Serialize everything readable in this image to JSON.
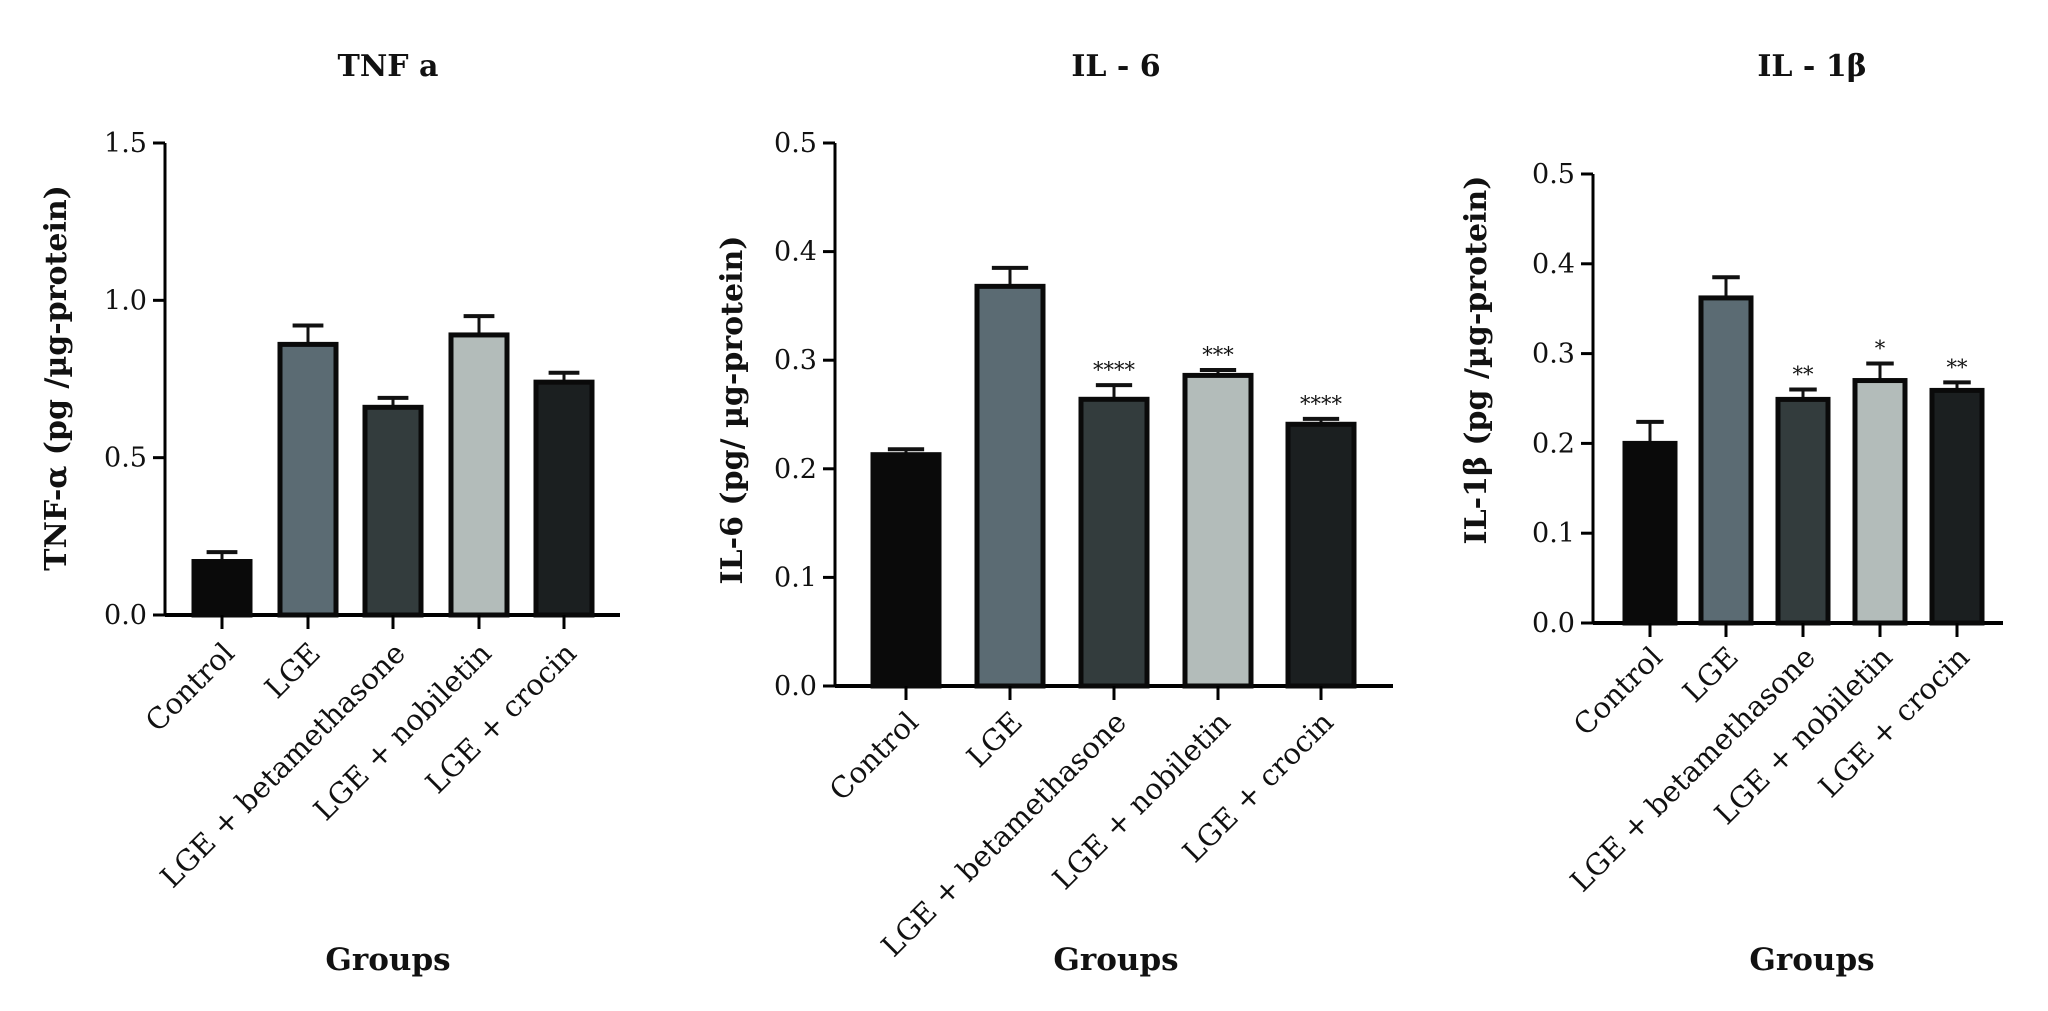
{
  "chart_data": [
    {
      "type": "bar",
      "title": "TNF a",
      "ylabel": "TNF-α (pg /µg-protein)",
      "xlabel": "Groups",
      "categories": [
        "Control",
        "LGE",
        "LGE + betamethasone",
        "LGE + nobiletin",
        "LGE + crocin"
      ],
      "values": [
        0.17,
        0.86,
        0.66,
        0.89,
        0.74
      ],
      "errors": [
        0.03,
        0.06,
        0.03,
        0.06,
        0.03
      ],
      "significance": [
        "",
        "",
        "",
        "",
        ""
      ],
      "ylim": [
        0,
        1.5
      ],
      "yticks": [
        0.0,
        0.5,
        1.0,
        1.5
      ],
      "tick_labels": [
        "0.0",
        "0.5",
        "1.0",
        "1.5"
      ],
      "colors": [
        "#0a0a0a",
        "#5b6b73",
        "#333c3d",
        "#b3bcba",
        "#1b1f20"
      ]
    },
    {
      "type": "bar",
      "title": "IL - 6",
      "ylabel": "IL-6 (pg/ µg-protein)",
      "xlabel": "Groups",
      "categories": [
        "Control",
        "LGE",
        "LGE + betamethasone",
        "LGE + nobiletin",
        "LGE + crocin"
      ],
      "values": [
        0.213,
        0.368,
        0.264,
        0.286,
        0.241
      ],
      "errors": [
        0.005,
        0.017,
        0.013,
        0.005,
        0.005
      ],
      "significance": [
        "",
        "",
        "****",
        "***",
        "****"
      ],
      "ylim": [
        0,
        0.5
      ],
      "yticks": [
        0.0,
        0.1,
        0.2,
        0.3,
        0.4,
        0.5
      ],
      "tick_labels": [
        "0.0",
        "0.1",
        "0.2",
        "0.3",
        "0.4",
        "0.5"
      ],
      "colors": [
        "#0a0a0a",
        "#5b6b73",
        "#333c3d",
        "#b3bcba",
        "#1b1f20"
      ]
    },
    {
      "type": "bar",
      "title": "IL - 1β",
      "ylabel": "IL-1β (pg /µg-protein)",
      "xlabel": "Groups",
      "categories": [
        "Control",
        "LGE",
        "LGE + betamethasone",
        "LGE + nobiletin",
        "LGE + crocin"
      ],
      "values": [
        0.2,
        0.362,
        0.249,
        0.27,
        0.259
      ],
      "errors": [
        0.024,
        0.023,
        0.011,
        0.019,
        0.009
      ],
      "significance": [
        "",
        "",
        "**",
        "*",
        "**"
      ],
      "ylim": [
        0,
        0.5
      ],
      "yticks": [
        0.0,
        0.1,
        0.2,
        0.3,
        0.4,
        0.5
      ],
      "tick_labels": [
        "0.0",
        "0.1",
        "0.2",
        "0.3",
        "0.4",
        "0.5"
      ],
      "colors": [
        "#0a0a0a",
        "#5b6b73",
        "#333c3d",
        "#b3bcba",
        "#1b1f20"
      ]
    }
  ]
}
